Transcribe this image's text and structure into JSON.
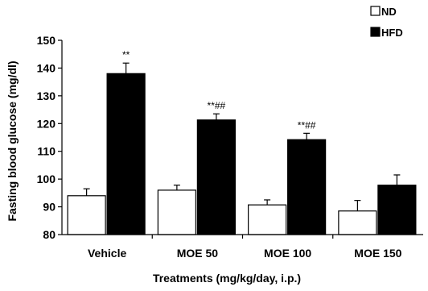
{
  "chart_data": {
    "type": "bar",
    "title": "",
    "xlabel": "Treatments (mg/kg/day, i.p.)",
    "ylabel": "Fasting blood glucose (mg/dl)",
    "ylim": [
      80,
      150
    ],
    "yticks": [
      80,
      90,
      100,
      110,
      120,
      130,
      140,
      150
    ],
    "grid": false,
    "legend": "top-right",
    "categories": [
      "Vehicle",
      "MOE 50",
      "MOE 100",
      "MOE 150"
    ],
    "series": [
      {
        "name": "ND",
        "color": "#ffffff",
        "values": [
          94,
          96,
          90.7,
          88.5
        ],
        "errors": [
          2.5,
          1.8,
          1.8,
          3.8
        ],
        "annotations": [
          "",
          "",
          "",
          ""
        ]
      },
      {
        "name": "HFD",
        "color": "#000000",
        "values": [
          138,
          121.3,
          114.2,
          97.8
        ],
        "errors": [
          3.8,
          2.2,
          2.3,
          3.7
        ],
        "annotations": [
          "**",
          "**##",
          "**##",
          ""
        ]
      }
    ]
  }
}
